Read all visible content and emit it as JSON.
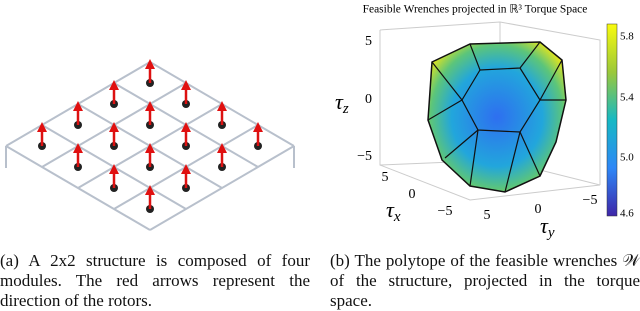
{
  "figure_b": {
    "title": "Feasible Wrenches projected in ℝ³ Torque Space",
    "z_label": {
      "symbol": "τ",
      "sub": "z"
    },
    "x_label": {
      "symbol": "τ",
      "sub": "x"
    },
    "y_label": {
      "symbol": "τ",
      "sub": "y"
    },
    "z_ticks": [
      "5",
      "0",
      "−5"
    ],
    "x_ticks": [
      "5",
      "0",
      "−5"
    ],
    "y_ticks": [
      "5",
      "0",
      "−5"
    ],
    "colorbar_ticks": [
      "5.8",
      "5.4",
      "5.0",
      "4.6"
    ]
  },
  "captions": {
    "a": "(a) A 2x2 structure is composed of four modules. The red arrows represent the direction of the rotors.",
    "b": "(b) The polytope of the feasible wrenches 𝒲 of the structure, projected in the torque space."
  }
}
